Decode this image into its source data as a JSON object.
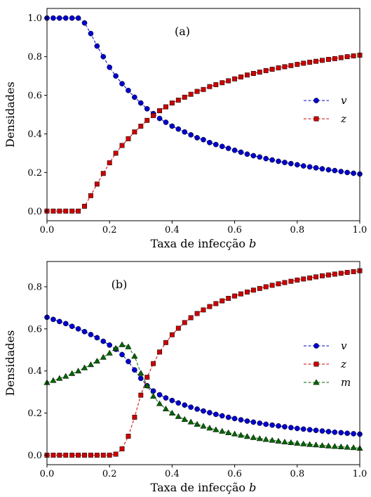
{
  "chart_data": [
    {
      "type": "line",
      "panel_label": "(a)",
      "xlabel_text": "Taxa de infecção ",
      "xlabel_var": "b",
      "ylabel": "Densidades",
      "xlim": [
        0,
        1
      ],
      "ylim": [
        -0.05,
        1.05
      ],
      "xticks": [
        "0.0",
        "0.2",
        "0.4",
        "0.6",
        "0.8",
        "1.0"
      ],
      "yticks": [
        "0.0",
        "0.2",
        "0.4",
        "0.6",
        "0.8",
        "1.0"
      ],
      "x": [
        0.0,
        0.02,
        0.04,
        0.06,
        0.08,
        0.1,
        0.12,
        0.14,
        0.16,
        0.18,
        0.2,
        0.22,
        0.24,
        0.26,
        0.28,
        0.3,
        0.32,
        0.34,
        0.36,
        0.38,
        0.4,
        0.42,
        0.44,
        0.46,
        0.48,
        0.5,
        0.52,
        0.54,
        0.56,
        0.58,
        0.6,
        0.62,
        0.64,
        0.66,
        0.68,
        0.7,
        0.72,
        0.74,
        0.76,
        0.78,
        0.8,
        0.82,
        0.84,
        0.86,
        0.88,
        0.9,
        0.92,
        0.94,
        0.96,
        0.98,
        1.0
      ],
      "series": [
        {
          "name": "v",
          "color": "#0000cc",
          "marker": "circle",
          "values": [
            1.0,
            1.0,
            1.0,
            1.0,
            1.0,
            1.0,
            0.975,
            0.92,
            0.855,
            0.8,
            0.745,
            0.7,
            0.66,
            0.625,
            0.59,
            0.56,
            0.53,
            0.505,
            0.48,
            0.46,
            0.44,
            0.425,
            0.41,
            0.395,
            0.38,
            0.37,
            0.355,
            0.345,
            0.335,
            0.325,
            0.315,
            0.305,
            0.295,
            0.287,
            0.28,
            0.272,
            0.265,
            0.258,
            0.252,
            0.246,
            0.24,
            0.234,
            0.229,
            0.224,
            0.219,
            0.214,
            0.21,
            0.205,
            0.2,
            0.196,
            0.192
          ]
        },
        {
          "name": "z",
          "color": "#cc0000",
          "marker": "square",
          "values": [
            0.0,
            0.0,
            0.0,
            0.0,
            0.0,
            0.0,
            0.025,
            0.08,
            0.14,
            0.195,
            0.25,
            0.3,
            0.34,
            0.375,
            0.41,
            0.44,
            0.47,
            0.495,
            0.52,
            0.54,
            0.56,
            0.575,
            0.59,
            0.605,
            0.62,
            0.63,
            0.645,
            0.655,
            0.665,
            0.675,
            0.685,
            0.695,
            0.705,
            0.713,
            0.72,
            0.728,
            0.735,
            0.742,
            0.748,
            0.754,
            0.76,
            0.766,
            0.771,
            0.776,
            0.781,
            0.786,
            0.79,
            0.795,
            0.8,
            0.804,
            0.808
          ]
        }
      ]
    },
    {
      "type": "line",
      "panel_label": "(b)",
      "xlabel_text": "Taxa de infecção ",
      "xlabel_var": "b",
      "ylabel": "Densidades",
      "xlim": [
        0,
        1
      ],
      "ylim": [
        -0.045,
        0.92
      ],
      "xticks": [
        "0.0",
        "0.2",
        "0.4",
        "0.6",
        "0.8",
        "1.0"
      ],
      "yticks": [
        "0.0",
        "0.2",
        "0.4",
        "0.6",
        "0.8"
      ],
      "x": [
        0.0,
        0.02,
        0.04,
        0.06,
        0.08,
        0.1,
        0.12,
        0.14,
        0.16,
        0.18,
        0.2,
        0.22,
        0.24,
        0.26,
        0.28,
        0.3,
        0.32,
        0.34,
        0.36,
        0.38,
        0.4,
        0.42,
        0.44,
        0.46,
        0.48,
        0.5,
        0.52,
        0.54,
        0.56,
        0.58,
        0.6,
        0.62,
        0.64,
        0.66,
        0.68,
        0.7,
        0.72,
        0.74,
        0.76,
        0.78,
        0.8,
        0.82,
        0.84,
        0.86,
        0.88,
        0.9,
        0.92,
        0.94,
        0.96,
        0.98,
        1.0
      ],
      "series": [
        {
          "name": "v",
          "color": "#0000cc",
          "marker": "circle",
          "values": [
            0.655,
            0.645,
            0.635,
            0.625,
            0.612,
            0.6,
            0.587,
            0.573,
            0.558,
            0.541,
            0.523,
            0.503,
            0.478,
            0.445,
            0.405,
            0.365,
            0.33,
            0.305,
            0.287,
            0.272,
            0.26,
            0.248,
            0.238,
            0.228,
            0.219,
            0.21,
            0.202,
            0.194,
            0.187,
            0.18,
            0.174,
            0.168,
            0.162,
            0.157,
            0.152,
            0.147,
            0.143,
            0.139,
            0.135,
            0.131,
            0.127,
            0.124,
            0.121,
            0.118,
            0.115,
            0.112,
            0.109,
            0.107,
            0.104,
            0.102,
            0.1
          ]
        },
        {
          "name": "z",
          "color": "#cc0000",
          "marker": "square",
          "values": [
            0.0,
            0.0,
            0.0,
            0.0,
            0.0,
            0.0,
            0.0,
            0.0,
            0.0,
            0.0,
            0.0,
            0.005,
            0.03,
            0.09,
            0.18,
            0.285,
            0.37,
            0.435,
            0.49,
            0.535,
            0.572,
            0.603,
            0.63,
            0.653,
            0.673,
            0.69,
            0.706,
            0.72,
            0.733,
            0.745,
            0.756,
            0.766,
            0.775,
            0.784,
            0.792,
            0.8,
            0.807,
            0.814,
            0.82,
            0.826,
            0.832,
            0.837,
            0.842,
            0.847,
            0.852,
            0.856,
            0.86,
            0.864,
            0.868,
            0.872,
            0.876
          ]
        },
        {
          "name": "m",
          "color": "#006400",
          "marker": "triangle",
          "values": [
            0.345,
            0.355,
            0.365,
            0.375,
            0.388,
            0.4,
            0.415,
            0.43,
            0.447,
            0.465,
            0.485,
            0.508,
            0.525,
            0.515,
            0.47,
            0.39,
            0.33,
            0.28,
            0.245,
            0.22,
            0.2,
            0.184,
            0.17,
            0.158,
            0.147,
            0.138,
            0.129,
            0.121,
            0.114,
            0.107,
            0.101,
            0.095,
            0.089,
            0.084,
            0.079,
            0.075,
            0.071,
            0.067,
            0.063,
            0.06,
            0.057,
            0.054,
            0.051,
            0.049,
            0.046,
            0.044,
            0.042,
            0.04,
            0.038,
            0.036,
            0.033
          ]
        }
      ]
    }
  ]
}
